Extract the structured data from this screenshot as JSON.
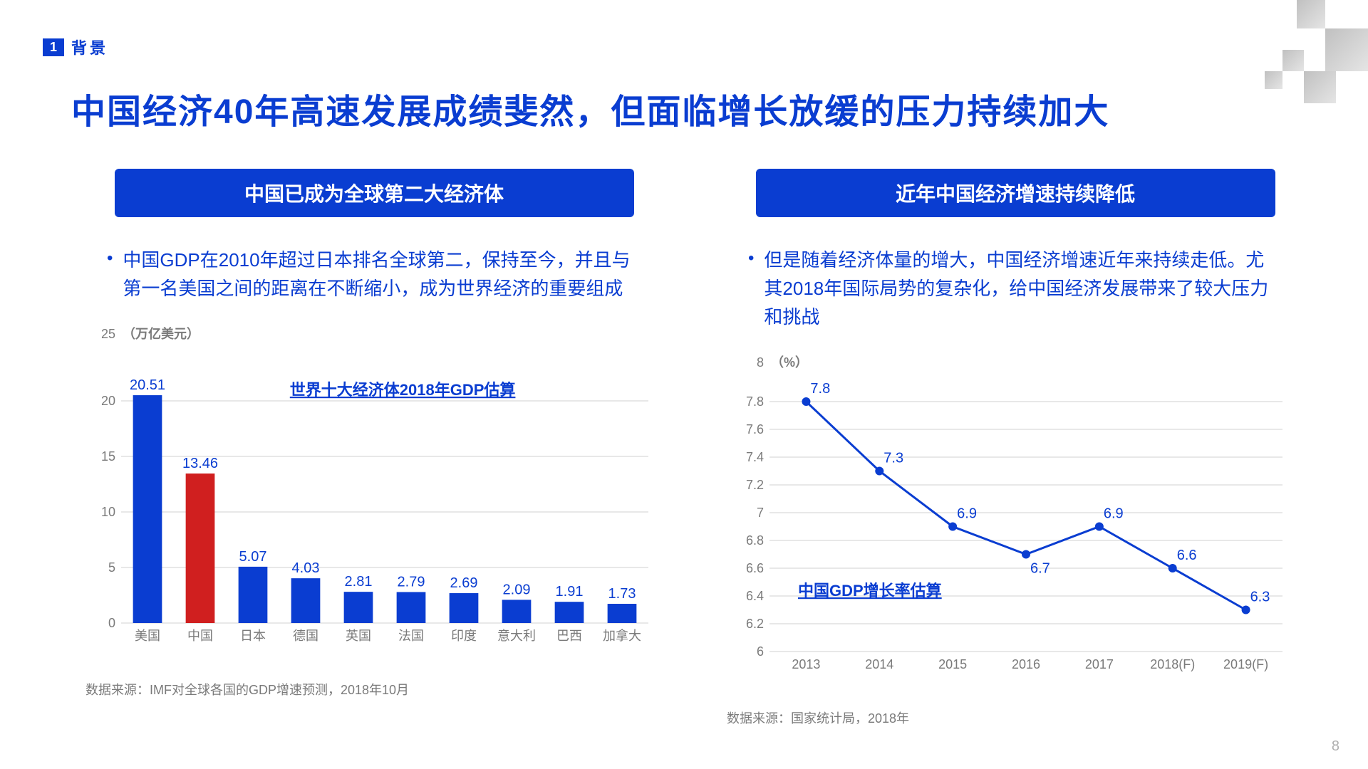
{
  "section": {
    "num": "1",
    "label": "背景"
  },
  "title": "中国经济40年高速发展成绩斐然，但面临增长放缓的压力持续加大",
  "page_number": "8",
  "colors": {
    "brand_blue": "#0a3dd1",
    "highlight_red": "#d01f1f",
    "axis_gray": "#7a7a7a",
    "grid_gray": "#d0d0d0",
    "text_gray": "#7a7a7a"
  },
  "left": {
    "banner": "中国已成为全球第二大经济体",
    "bullet": "中国GDP在2010年超过日本排名全球第二，保持至今，并且与第一名美国之间的距离在不断缩小，成为世界经济的重要组成",
    "source": "数据来源：IMF对全球各国的GDP增速预测，2018年10月",
    "chart": {
      "type": "bar",
      "title": "世界十大经济体2018年GDP估算",
      "y_unit": "（万亿美元）",
      "y_unit_value": "25",
      "ylim": [
        0,
        25
      ],
      "yticks": [
        0,
        5,
        10,
        15,
        20
      ],
      "categories": [
        "美国",
        "中国",
        "日本",
        "德国",
        "英国",
        "法国",
        "印度",
        "意大利",
        "巴西",
        "加拿大"
      ],
      "values": [
        20.51,
        13.46,
        5.07,
        4.03,
        2.81,
        2.79,
        2.69,
        2.09,
        1.91,
        1.73
      ],
      "bar_colors": [
        "#0a3dd1",
        "#d01f1f",
        "#0a3dd1",
        "#0a3dd1",
        "#0a3dd1",
        "#0a3dd1",
        "#0a3dd1",
        "#0a3dd1",
        "#0a3dd1",
        "#0a3dd1"
      ],
      "bar_width": 0.55,
      "value_label_color": "#0a3dd1",
      "value_label_fontsize": 20,
      "axis_label_fontsize": 18,
      "tick_fontsize": 18,
      "grid_color": "#d0d0d0"
    }
  },
  "right": {
    "banner": "近年中国经济增速持续降低",
    "bullet": "但是随着经济体量的增大，中国经济增速近年来持续走低。尤其2018年国际局势的复杂化，给中国经济发展带来了较大压力和挑战",
    "source": "数据来源：国家统计局，2018年",
    "chart": {
      "type": "line",
      "title": "中国GDP增长率估算",
      "y_unit": "（%）",
      "y_unit_value": "8",
      "ylim": [
        6,
        8
      ],
      "yticks": [
        6,
        6.2,
        6.4,
        6.6,
        6.8,
        7,
        7.2,
        7.4,
        7.6,
        7.8
      ],
      "categories": [
        "2013",
        "2014",
        "2015",
        "2016",
        "2017",
        "2018(F)",
        "2019(F)"
      ],
      "values": [
        7.8,
        7.3,
        6.9,
        6.7,
        6.9,
        6.6,
        6.3
      ],
      "line_color": "#0a3dd1",
      "line_width": 3,
      "marker": "circle",
      "marker_size": 6,
      "marker_color": "#0a3dd1",
      "value_label_color": "#0a3dd1",
      "value_label_fontsize": 20,
      "axis_label_fontsize": 18,
      "tick_fontsize": 18,
      "grid_color": "#d0d0d0"
    }
  }
}
